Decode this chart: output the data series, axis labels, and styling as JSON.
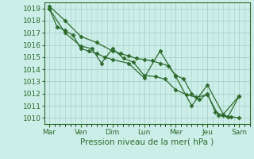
{
  "xlabel_bottom": "Pression niveau de la mer( hPa )",
  "bg_color": "#cceee8",
  "grid_color": "#a8cfc8",
  "line_color": "#2d6b2d",
  "marker_color": "#2d6b2d",
  "ylim": [
    1009.5,
    1019.5
  ],
  "yticks": [
    1010,
    1011,
    1012,
    1013,
    1014,
    1015,
    1016,
    1017,
    1018,
    1019
  ],
  "day_labels": [
    "Mar",
    "Ven",
    "Dim",
    "Lun",
    "Mer",
    "Jeu",
    "Sam"
  ],
  "day_positions": [
    0,
    1,
    2,
    3,
    4,
    5,
    6
  ],
  "series1_x": [
    0.0,
    0.25,
    0.5,
    0.75,
    1.0,
    1.25,
    1.5,
    1.75,
    2.0,
    2.5,
    3.0,
    3.5,
    4.0,
    4.5,
    5.0,
    5.5,
    6.0
  ],
  "series1_y": [
    1019.0,
    1017.5,
    1017.2,
    1016.8,
    1015.7,
    1015.5,
    1015.3,
    1015.0,
    1014.8,
    1014.5,
    1013.3,
    1015.5,
    1013.4,
    1011.0,
    1012.7,
    1010.3,
    1011.8
  ],
  "series2_x": [
    0.0,
    0.5,
    1.0,
    1.5,
    2.0,
    2.25,
    2.5,
    2.75,
    3.0,
    3.25,
    3.5,
    3.75,
    4.0,
    4.25,
    4.5,
    4.75,
    5.0,
    5.25,
    5.5,
    5.75,
    6.0
  ],
  "series2_y": [
    1019.2,
    1018.0,
    1016.7,
    1016.2,
    1015.5,
    1015.3,
    1015.1,
    1014.9,
    1014.8,
    1014.7,
    1014.5,
    1014.3,
    1013.5,
    1013.2,
    1012.0,
    1011.5,
    1012.0,
    1010.5,
    1010.2,
    1010.1,
    1010.0
  ],
  "series3_x": [
    0.0,
    0.5,
    1.0,
    1.35,
    1.65,
    2.0,
    2.35,
    2.65,
    3.0,
    3.35,
    3.65,
    4.0,
    4.35,
    4.65,
    5.0,
    5.35,
    5.65,
    6.0
  ],
  "series3_y": [
    1019.0,
    1017.0,
    1015.9,
    1015.7,
    1014.5,
    1015.7,
    1014.9,
    1014.6,
    1013.5,
    1013.4,
    1013.2,
    1012.3,
    1011.9,
    1011.7,
    1011.9,
    1010.2,
    1010.1,
    1011.8
  ],
  "xlim": [
    -0.15,
    6.35
  ],
  "tick_fontsize": 6.5,
  "label_fontsize": 7.5
}
